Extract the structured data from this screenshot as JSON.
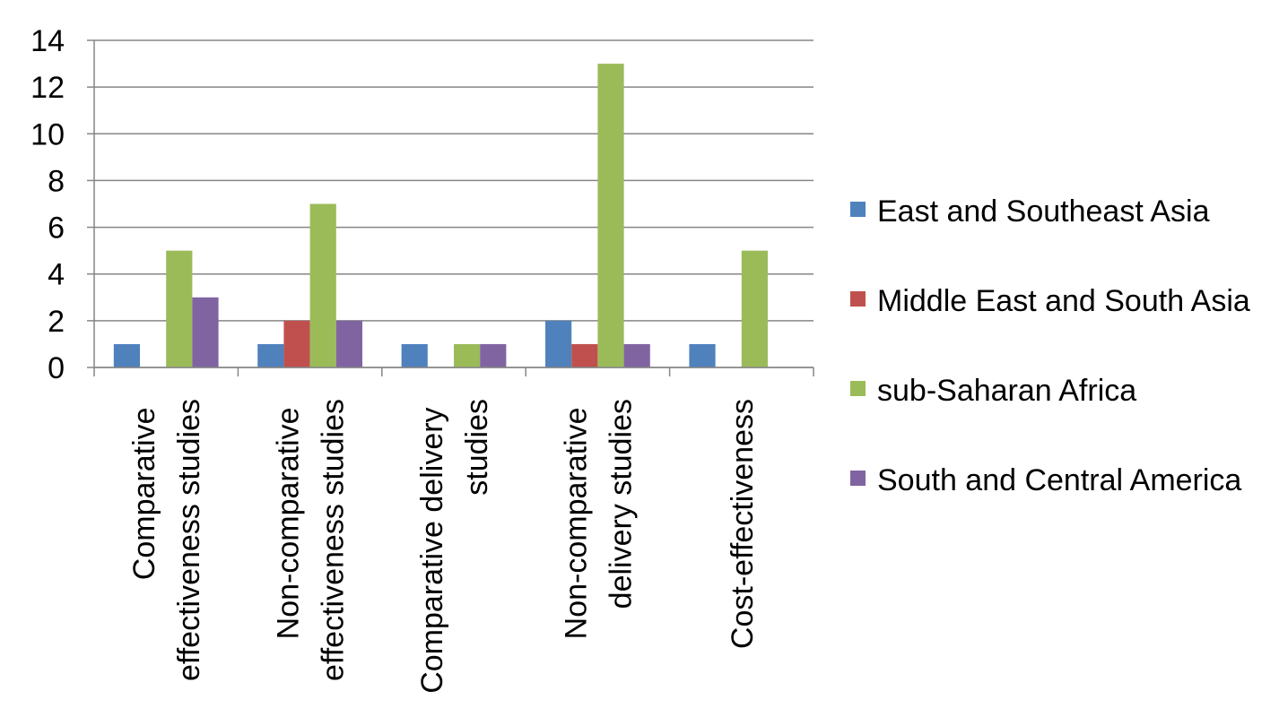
{
  "chart_data": {
    "type": "bar",
    "categories": [
      "Comparative effectiveness studies",
      "Non-comparative effectiveness studies",
      "Comparative delivery studies",
      "Non-comparative delivery studies",
      "Cost-effectiveness"
    ],
    "series": [
      {
        "name": "East and Southeast Asia",
        "color": "#4f81bd",
        "values": [
          1,
          1,
          1,
          2,
          1
        ]
      },
      {
        "name": "Middle East and South Asia",
        "color": "#c0504d",
        "values": [
          0,
          2,
          0,
          1,
          0
        ]
      },
      {
        "name": "sub-Saharan Africa",
        "color": "#9bbb59",
        "values": [
          5,
          7,
          1,
          13,
          5
        ]
      },
      {
        "name": "South and Central America",
        "color": "#8064a2",
        "values": [
          3,
          2,
          1,
          1,
          0
        ]
      }
    ],
    "ylim": [
      0,
      14
    ],
    "yticks": [
      0,
      2,
      4,
      6,
      8,
      10,
      12,
      14
    ],
    "grid": true
  }
}
